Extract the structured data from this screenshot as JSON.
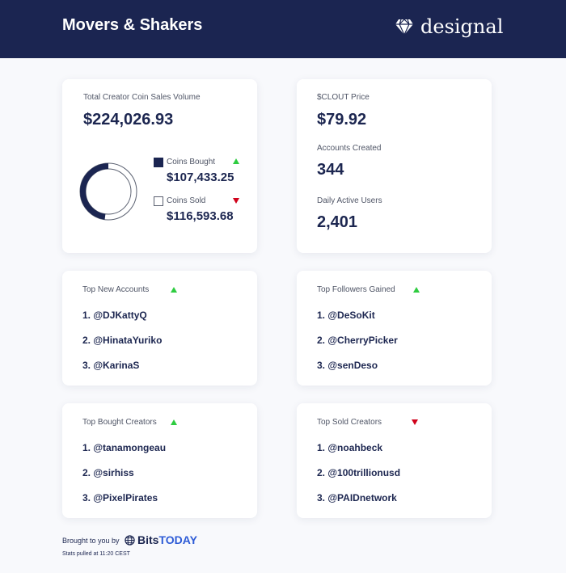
{
  "header": {
    "title": "Movers & Shakers",
    "brand": {
      "name": "designal",
      "icon": "diamond-icon"
    }
  },
  "sales": {
    "label": "Total Creator Coin Sales Volume",
    "value": "$224,026.93",
    "bought": {
      "label": "Coins Bought",
      "value": "$107,433.25",
      "amount": 107433.25,
      "trend": "up"
    },
    "sold": {
      "label": "Coins Sold",
      "value": "$116,593.68",
      "amount": 116593.68,
      "trend": "down"
    },
    "colors": {
      "bought": "#1b2551",
      "sold": "#ffffff"
    }
  },
  "stats": {
    "price_label": "$CLOUT Price",
    "price_value": "$79.92",
    "accounts_label": "Accounts Created",
    "accounts_value": "344",
    "dau_label": "Daily Active Users",
    "dau_value": "2,401"
  },
  "lists": {
    "new_accounts": {
      "title": "Top New Accounts",
      "trend": "up",
      "items": [
        "1. @DJKattyQ",
        "2. @HinataYuriko",
        "3. @KarinaS"
      ]
    },
    "followers": {
      "title": "Top Followers Gained",
      "trend": "up",
      "items": [
        "1. @DeSoKit",
        "2. @CherryPicker",
        "3. @senDeso"
      ]
    },
    "bought_creators": {
      "title": "Top Bought Creators",
      "trend": "up",
      "items": [
        "1. @tanamongeau",
        "2. @sirhiss",
        "3. @PixelPirates"
      ]
    },
    "sold_creators": {
      "title": "Top Sold Creators",
      "trend": "down",
      "items": [
        "1. @noahbeck",
        "2. @100trillionusd",
        "3. @PAIDnetwork"
      ]
    }
  },
  "footer": {
    "brought": "Brought to you by",
    "bits": "Bits",
    "today": "TODAY",
    "stats_time": "Stats pulled at 11:20 CEST"
  },
  "colors": {
    "navy": "#1b2551",
    "up": "#2ecc40",
    "down": "#d0021b",
    "accent": "#2d5bd6"
  }
}
